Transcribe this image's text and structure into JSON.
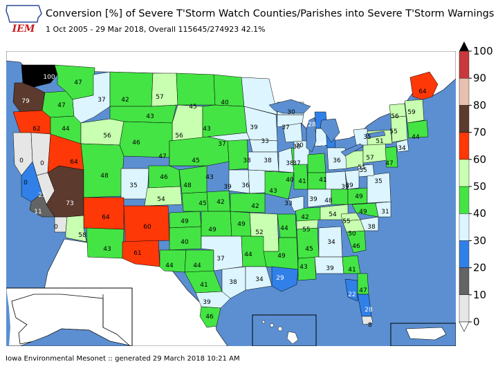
{
  "header": {
    "logo_text": "IEM",
    "title": "Conversion [%] of Severe T'Storm Watch Counties/Parishes into Severe T'Storm Warnings",
    "subtitle": "1 Oct 2005 - 29 Mar 2018, Overall 115645/274923 42.1%"
  },
  "footer": {
    "text": "Iowa Environmental Mesonet :: generated 29 March 2018 10:21 AM"
  },
  "colors": {
    "ocean": "#5b8fd1",
    "land_other": "#ffffff",
    "border": "#000000"
  },
  "legend": {
    "ticks": [
      "0",
      "10",
      "20",
      "30",
      "40",
      "50",
      "60",
      "70",
      "80",
      "90",
      "100"
    ],
    "bins": [
      {
        "lo": 0,
        "hi": 10,
        "color": "#e6e6e6"
      },
      {
        "lo": 10,
        "hi": 20,
        "color": "#646464"
      },
      {
        "lo": 20,
        "hi": 30,
        "color": "#3080e8"
      },
      {
        "lo": 30,
        "hi": 40,
        "color": "#dcf5ff"
      },
      {
        "lo": 40,
        "hi": 50,
        "color": "#44e444"
      },
      {
        "lo": 50,
        "hi": 60,
        "color": "#c8ffb0"
      },
      {
        "lo": 60,
        "hi": 70,
        "color": "#ff3808"
      },
      {
        "lo": 70,
        "hi": 80,
        "color": "#5c3a2e"
      },
      {
        "lo": 80,
        "hi": 90,
        "color": "#e8c0b0"
      },
      {
        "lo": 90,
        "hi": 100,
        "color": "#c8383c"
      },
      {
        "lo": 100,
        "hi": 101,
        "color": "#000000"
      }
    ]
  },
  "office_values": [
    {
      "id": "wfo-sew",
      "value": "100"
    },
    {
      "id": "wfo-otx",
      "value": "47"
    },
    {
      "id": "wfo-pqr",
      "value": "79"
    },
    {
      "id": "wfo-pdt",
      "value": "47"
    },
    {
      "id": "wfo-mfr",
      "value": "62"
    },
    {
      "id": "wfo-boi",
      "value": "44"
    },
    {
      "id": "wfo-mso",
      "value": "37"
    },
    {
      "id": "wfo-tfx",
      "value": "42"
    },
    {
      "id": "wfo-ggw",
      "value": "57"
    },
    {
      "id": "wfo-byz",
      "value": "43"
    },
    {
      "id": "wfo-pih",
      "value": "56"
    },
    {
      "id": "wfo-bis",
      "value": "45"
    },
    {
      "id": "wfo-fgf",
      "value": "40"
    },
    {
      "id": "wfo-unr",
      "value": "56"
    },
    {
      "id": "wfo-abr",
      "value": "43"
    },
    {
      "id": "wfo-riw",
      "value": "46"
    },
    {
      "id": "wfo-cys",
      "value": "47"
    },
    {
      "id": "wfo-eka",
      "value": "0"
    },
    {
      "id": "wfo-sto",
      "value": "0"
    },
    {
      "id": "wfo-lkn",
      "value": "64"
    },
    {
      "id": "wfo-mtr",
      "value": "21"
    },
    {
      "id": "wfo-hnx",
      "value": "0"
    },
    {
      "id": "wfo-lox",
      "value": "11"
    },
    {
      "id": "wfo-sgx",
      "value": "0"
    },
    {
      "id": "wfo-vef",
      "value": "73"
    },
    {
      "id": "wfo-slc",
      "value": "48"
    },
    {
      "id": "wfo-gjt",
      "value": "35"
    },
    {
      "id": "wfo-bou",
      "value": "46"
    },
    {
      "id": "wfo-pub",
      "value": "54"
    },
    {
      "id": "wfo-gld",
      "value": "48"
    },
    {
      "id": "wfo-lbf",
      "value": "45"
    },
    {
      "id": "wfo-oax",
      "value": "43"
    },
    {
      "id": "wfo-fsd",
      "value": "37"
    },
    {
      "id": "wfo-mpx",
      "value": "38"
    },
    {
      "id": "wfo-dlh",
      "value": "39"
    },
    {
      "id": "wfo-arx",
      "value": "33"
    },
    {
      "id": "wfo-dmx",
      "value": "38"
    },
    {
      "id": "wfo-dvn",
      "value": "38"
    },
    {
      "id": "wfo-ddc",
      "value": "45"
    },
    {
      "id": "wfo-ict",
      "value": "42"
    },
    {
      "id": "wfo-top",
      "value": "39"
    },
    {
      "id": "wfo-eax",
      "value": "36"
    },
    {
      "id": "wfo-sgf",
      "value": "42"
    },
    {
      "id": "wfo-lsx",
      "value": "43"
    },
    {
      "id": "wfo-fgz",
      "value": "64"
    },
    {
      "id": "wfo-psr",
      "value": "58"
    },
    {
      "id": "wfo-twc",
      "value": "43"
    },
    {
      "id": "wfo-abq",
      "value": "60"
    },
    {
      "id": "wfo-epz",
      "value": "61"
    },
    {
      "id": "wfo-ama",
      "value": "49"
    },
    {
      "id": "wfo-lub",
      "value": "40"
    },
    {
      "id": "wfo-maf",
      "value": "44"
    },
    {
      "id": "wfo-oun",
      "value": "49"
    },
    {
      "id": "wfo-tsa",
      "value": "49"
    },
    {
      "id": "wfo-sjt",
      "value": "44"
    },
    {
      "id": "wfo-fwd",
      "value": "37"
    },
    {
      "id": "wfo-ewx",
      "value": "41"
    },
    {
      "id": "wfo-hgx",
      "value": "38"
    },
    {
      "id": "wfo-crp",
      "value": "39"
    },
    {
      "id": "wfo-bro",
      "value": "46"
    },
    {
      "id": "wfo-shv",
      "value": "44"
    },
    {
      "id": "wfo-lzk",
      "value": "52"
    },
    {
      "id": "wfo-meg",
      "value": "44"
    },
    {
      "id": "wfo-jan",
      "value": "49"
    },
    {
      "id": "wfo-lch",
      "value": "34"
    },
    {
      "id": "wfo-lix",
      "value": "29"
    },
    {
      "id": "wfo-mob",
      "value": "43"
    },
    {
      "id": "wfo-bmx",
      "value": "45"
    },
    {
      "id": "wfo-hun",
      "value": "55"
    },
    {
      "id": "wfo-ohx",
      "value": "42"
    },
    {
      "id": "wfo-pah",
      "value": "33"
    },
    {
      "id": "wfo-ilx",
      "value": "40"
    },
    {
      "id": "wfo-lot",
      "value": "37"
    },
    {
      "id": "wfo-mkx",
      "value": "30"
    },
    {
      "id": "wfo-grb",
      "value": "37"
    },
    {
      "id": "wfo-mqt",
      "value": "30"
    },
    {
      "id": "wfo-apx",
      "value": "28"
    },
    {
      "id": "wfo-grr",
      "value": "30"
    },
    {
      "id": "wfo-dtx",
      "value": "29"
    },
    {
      "id": "wfo-iwx",
      "value": "41"
    },
    {
      "id": "wfo-ind",
      "value": "41"
    },
    {
      "id": "wfo-iln",
      "value": "39"
    },
    {
      "id": "wfo-lmk",
      "value": "39"
    },
    {
      "id": "wfo-jkl",
      "value": "48"
    },
    {
      "id": "wfo-mrx",
      "value": "54"
    },
    {
      "id": "wfo-ffc",
      "value": "34"
    },
    {
      "id": "wfo-tae",
      "value": "39"
    },
    {
      "id": "wfo-jax",
      "value": "41"
    },
    {
      "id": "wfo-tbw",
      "value": "22"
    },
    {
      "id": "wfo-mlb",
      "value": "47"
    },
    {
      "id": "wfo-mfl",
      "value": "28"
    },
    {
      "id": "wfo-key",
      "value": "8"
    },
    {
      "id": "wfo-chs",
      "value": "46"
    },
    {
      "id": "wfo-cae",
      "value": "50"
    },
    {
      "id": "wfo-gsp",
      "value": "55"
    },
    {
      "id": "wfo-ilm",
      "value": "38"
    },
    {
      "id": "wfo-rah",
      "value": "49"
    },
    {
      "id": "wfo-mhx",
      "value": "31"
    },
    {
      "id": "wfo-rnk",
      "value": "49"
    },
    {
      "id": "wfo-akq",
      "value": "35"
    },
    {
      "id": "wfo-lwx",
      "value": "35"
    },
    {
      "id": "wfo-rlx",
      "value": "39"
    },
    {
      "id": "wfo-pbz",
      "value": "51"
    },
    {
      "id": "wfo-cle",
      "value": "36"
    },
    {
      "id": "wfo-ctp",
      "value": "57"
    },
    {
      "id": "wfo-phi",
      "value": "47"
    },
    {
      "id": "wfo-okx",
      "value": "34"
    },
    {
      "id": "wfo-bgm",
      "value": "51"
    },
    {
      "id": "wfo-buf",
      "value": "35"
    },
    {
      "id": "wfo-aly",
      "value": "55"
    },
    {
      "id": "wfo-btv",
      "value": "56"
    },
    {
      "id": "wfo-gyx",
      "value": "59"
    },
    {
      "id": "wfo-box",
      "value": "44"
    },
    {
      "id": "wfo-car",
      "value": "64"
    }
  ]
}
